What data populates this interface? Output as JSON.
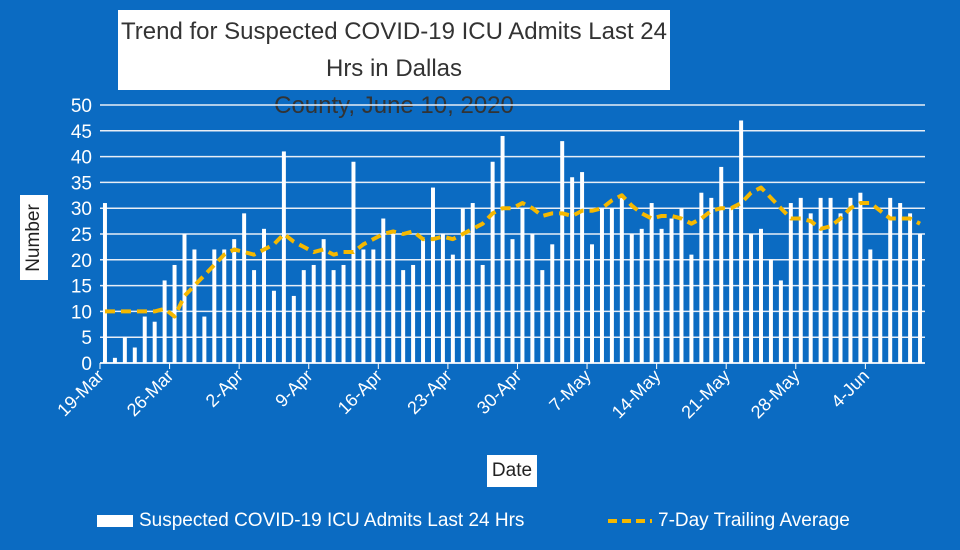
{
  "chart_data": {
    "type": "bar",
    "title": "Trend for Suspected COVID-19 ICU Admits Last 24 Hrs in Dallas County, June 10, 2020",
    "title_lines": [
      "Trend for Suspected COVID-19 ICU Admits Last 24 Hrs in Dallas",
      "County, June 10, 2020"
    ],
    "xlabel": "Date",
    "ylabel": "Number",
    "ylim": [
      0,
      50
    ],
    "yticks": [
      0,
      5,
      10,
      15,
      20,
      25,
      30,
      35,
      40,
      45,
      50
    ],
    "xtick_labels": [
      "19-Mar",
      "26-Mar",
      "2-Apr",
      "9-Apr",
      "16-Apr",
      "23-Apr",
      "30-Apr",
      "7-May",
      "14-May",
      "21-May",
      "28-May",
      "4-Jun"
    ],
    "first_date": "19-Mar",
    "grid": true,
    "legend_position": "bottom",
    "colors": {
      "background": "#0b6bc2",
      "bars": "#ffffff",
      "average": "#f5b800"
    },
    "series": [
      {
        "name": "Suspected COVID-19 ICU Admits Last 24 Hrs",
        "type": "bar",
        "values": [
          31,
          1,
          5,
          3,
          9,
          8,
          16,
          19,
          25,
          22,
          9,
          22,
          22,
          24,
          29,
          18,
          26,
          14,
          41,
          13,
          18,
          19,
          24,
          18,
          19,
          39,
          22,
          22,
          28,
          25,
          18,
          19,
          24,
          34,
          25,
          21,
          30,
          31,
          19,
          39,
          44,
          24,
          30,
          25,
          18,
          23,
          43,
          36,
          37,
          23,
          30,
          30,
          32,
          25,
          26,
          31,
          26,
          28,
          30,
          21,
          33,
          32,
          38,
          30,
          47,
          25,
          26,
          20,
          16,
          31,
          32,
          29,
          32,
          32,
          29,
          32,
          33,
          22,
          20,
          32,
          31,
          29,
          25
        ]
      },
      {
        "name": "7-Day Trailing Average",
        "type": "line",
        "values": [
          10,
          10,
          10,
          10,
          10,
          10,
          10.5,
          9,
          13,
          15,
          17,
          19,
          21,
          22,
          21.5,
          21,
          22,
          23,
          25,
          23.5,
          22.5,
          21.5,
          22,
          21,
          21.5,
          21.5,
          23,
          24,
          25,
          25.5,
          25,
          25.5,
          24,
          24,
          24.5,
          24,
          25,
          26,
          27,
          29,
          30,
          30,
          31,
          30,
          28.5,
          29,
          29,
          28.5,
          29.5,
          29.5,
          30,
          31.5,
          32.5,
          30.5,
          29,
          28,
          28.5,
          28.5,
          28,
          27,
          28,
          29.5,
          30,
          30,
          31,
          33,
          34,
          32,
          30,
          28,
          28,
          27.5,
          26,
          26.5,
          28,
          30,
          31,
          31,
          29.5,
          28,
          28,
          28,
          27
        ]
      }
    ]
  }
}
